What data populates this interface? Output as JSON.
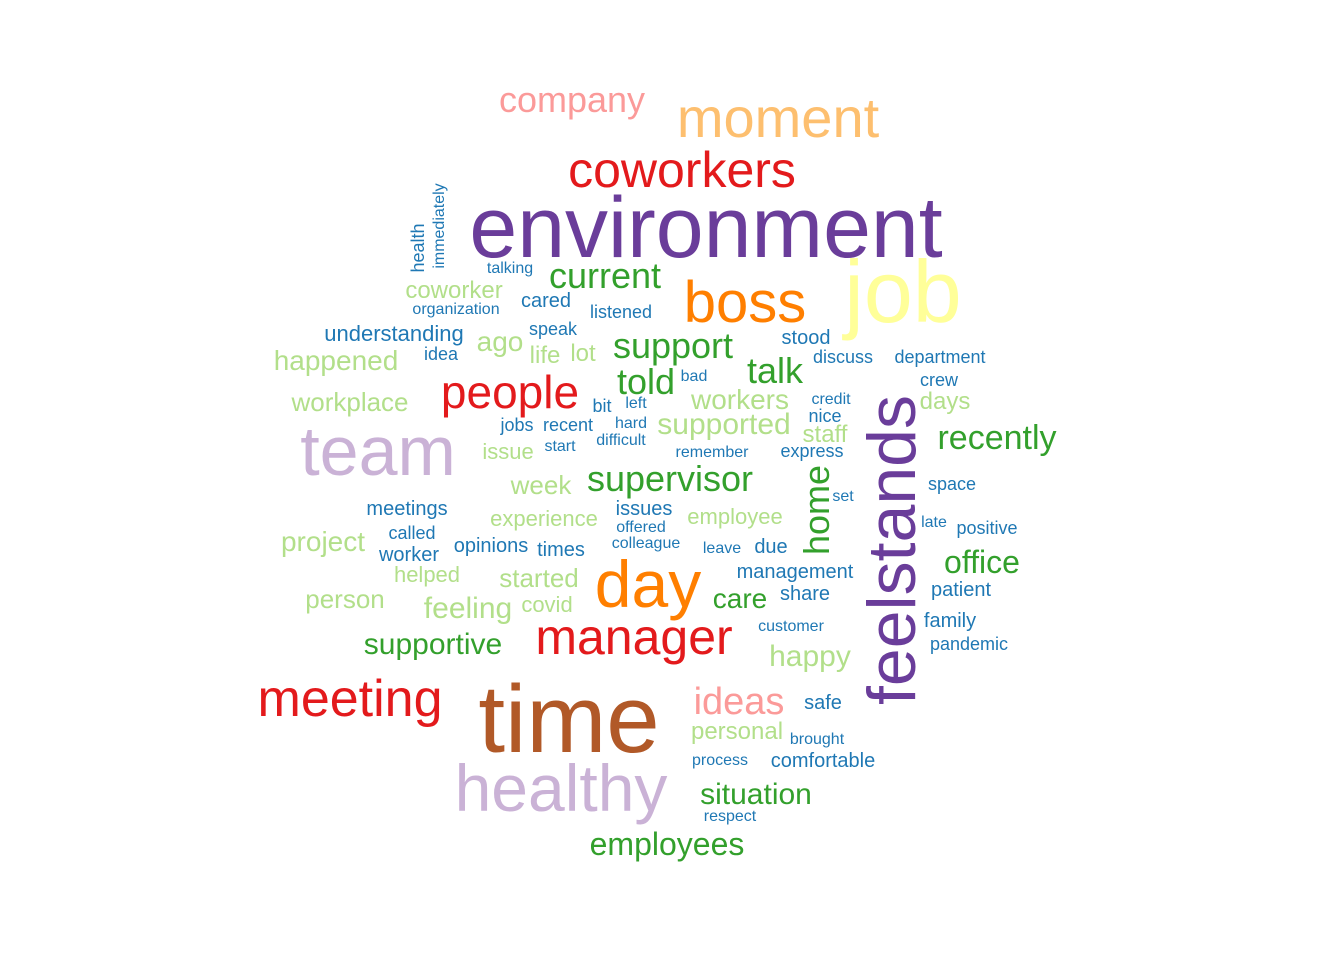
{
  "palette": {
    "purple": "#6a3d9a",
    "brown": "#b15928",
    "lavender": "#cab2d6",
    "yellow": "#ffff99",
    "orange": "#ff7f00",
    "light_orange": "#fdbf6f",
    "red": "#e31a1c",
    "pink": "#fb9a99",
    "green": "#33a02c",
    "light_green": "#b2df8a",
    "blue": "#1f78b4"
  },
  "words": [
    {
      "text": "company",
      "color": "pink"
    },
    {
      "text": "moment",
      "color": "light_orange"
    },
    {
      "text": "coworkers",
      "color": "red"
    },
    {
      "text": "environment",
      "color": "purple"
    },
    {
      "text": "job",
      "color": "yellow"
    },
    {
      "text": "boss",
      "color": "orange"
    },
    {
      "text": "current",
      "color": "green"
    },
    {
      "text": "immediately",
      "color": "blue"
    },
    {
      "text": "health",
      "color": "blue"
    },
    {
      "text": "talking",
      "color": "blue"
    },
    {
      "text": "coworker",
      "color": "light_green"
    },
    {
      "text": "cared",
      "color": "blue"
    },
    {
      "text": "organization",
      "color": "blue"
    },
    {
      "text": "listened",
      "color": "blue"
    },
    {
      "text": "understanding",
      "color": "blue"
    },
    {
      "text": "speak",
      "color": "blue"
    },
    {
      "text": "ago",
      "color": "light_green"
    },
    {
      "text": "support",
      "color": "green"
    },
    {
      "text": "stood",
      "color": "blue"
    },
    {
      "text": "happened",
      "color": "light_green"
    },
    {
      "text": "idea",
      "color": "blue"
    },
    {
      "text": "life",
      "color": "light_green"
    },
    {
      "text": "lot",
      "color": "light_green"
    },
    {
      "text": "discuss",
      "color": "blue"
    },
    {
      "text": "department",
      "color": "blue"
    },
    {
      "text": "people",
      "color": "red"
    },
    {
      "text": "told",
      "color": "green"
    },
    {
      "text": "talk",
      "color": "green"
    },
    {
      "text": "bad",
      "color": "blue"
    },
    {
      "text": "crew",
      "color": "blue"
    },
    {
      "text": "workplace",
      "color": "light_green"
    },
    {
      "text": "bit",
      "color": "blue"
    },
    {
      "text": "left",
      "color": "blue"
    },
    {
      "text": "workers",
      "color": "light_green"
    },
    {
      "text": "credit",
      "color": "blue"
    },
    {
      "text": "days",
      "color": "light_green"
    },
    {
      "text": "nice",
      "color": "blue"
    },
    {
      "text": "team",
      "color": "lavender"
    },
    {
      "text": "jobs",
      "color": "blue"
    },
    {
      "text": "recent",
      "color": "blue"
    },
    {
      "text": "hard",
      "color": "blue"
    },
    {
      "text": "supported",
      "color": "light_green"
    },
    {
      "text": "staff",
      "color": "light_green"
    },
    {
      "text": "recently",
      "color": "green"
    },
    {
      "text": "feelstands",
      "color": "purple"
    },
    {
      "text": "issue",
      "color": "light_green"
    },
    {
      "text": "start",
      "color": "blue"
    },
    {
      "text": "difficult",
      "color": "blue"
    },
    {
      "text": "remember",
      "color": "blue"
    },
    {
      "text": "express",
      "color": "blue"
    },
    {
      "text": "supervisor",
      "color": "green"
    },
    {
      "text": "week",
      "color": "light_green"
    },
    {
      "text": "home",
      "color": "green"
    },
    {
      "text": "space",
      "color": "blue"
    },
    {
      "text": "set",
      "color": "blue"
    },
    {
      "text": "meetings",
      "color": "blue"
    },
    {
      "text": "issues",
      "color": "blue"
    },
    {
      "text": "experience",
      "color": "light_green"
    },
    {
      "text": "employee",
      "color": "light_green"
    },
    {
      "text": "offered",
      "color": "blue"
    },
    {
      "text": "late",
      "color": "blue"
    },
    {
      "text": "positive",
      "color": "blue"
    },
    {
      "text": "called",
      "color": "blue"
    },
    {
      "text": "project",
      "color": "light_green"
    },
    {
      "text": "opinions",
      "color": "blue"
    },
    {
      "text": "colleague",
      "color": "blue"
    },
    {
      "text": "worker",
      "color": "blue"
    },
    {
      "text": "times",
      "color": "blue"
    },
    {
      "text": "leave",
      "color": "blue"
    },
    {
      "text": "due",
      "color": "blue"
    },
    {
      "text": "office",
      "color": "green"
    },
    {
      "text": "helped",
      "color": "light_green"
    },
    {
      "text": "day",
      "color": "orange"
    },
    {
      "text": "management",
      "color": "blue"
    },
    {
      "text": "started",
      "color": "light_green"
    },
    {
      "text": "patient",
      "color": "blue"
    },
    {
      "text": "person",
      "color": "light_green"
    },
    {
      "text": "care",
      "color": "green"
    },
    {
      "text": "share",
      "color": "blue"
    },
    {
      "text": "feeling",
      "color": "light_green"
    },
    {
      "text": "covid",
      "color": "light_green"
    },
    {
      "text": "family",
      "color": "blue"
    },
    {
      "text": "manager",
      "color": "red"
    },
    {
      "text": "customer",
      "color": "blue"
    },
    {
      "text": "supportive",
      "color": "green"
    },
    {
      "text": "pandemic",
      "color": "blue"
    },
    {
      "text": "happy",
      "color": "light_green"
    },
    {
      "text": "meeting",
      "color": "red"
    },
    {
      "text": "time",
      "color": "brown"
    },
    {
      "text": "ideas",
      "color": "pink"
    },
    {
      "text": "safe",
      "color": "blue"
    },
    {
      "text": "personal",
      "color": "light_green"
    },
    {
      "text": "brought",
      "color": "blue"
    },
    {
      "text": "healthy",
      "color": "lavender"
    },
    {
      "text": "process",
      "color": "blue"
    },
    {
      "text": "comfortable",
      "color": "blue"
    },
    {
      "text": "situation",
      "color": "green"
    },
    {
      "text": "respect",
      "color": "blue"
    },
    {
      "text": "employees",
      "color": "green"
    }
  ]
}
